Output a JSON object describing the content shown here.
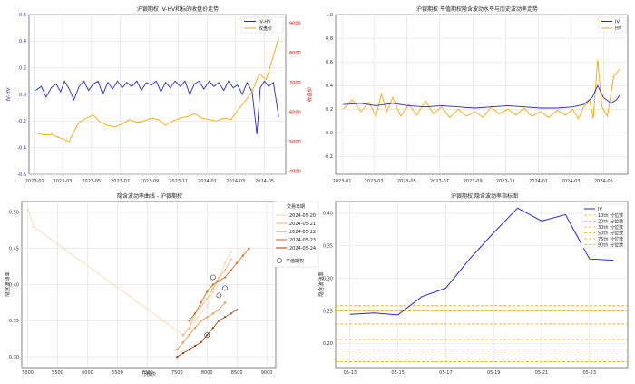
{
  "chart_data": [
    {
      "type": "line",
      "title": "沪银期权 IV-HV和标的收盘价走势",
      "ylabel": "IV-HV",
      "y2label": "收盘价",
      "ylim": [
        -0.6,
        0.6
      ],
      "y2lim": [
        3900,
        9300
      ],
      "yticks": [
        "-0.6",
        "-0.4",
        "-0.2",
        "0.0",
        "0.2",
        "0.4",
        "0.6"
      ],
      "y2ticks": [
        "4000",
        "5000",
        "6000",
        "7000",
        "8000",
        "9000"
      ],
      "xlim": [
        "2022-12-20",
        "2024-06-15"
      ],
      "xticks": [
        "2023-01",
        "2023-03",
        "2023-05",
        "2023-07",
        "2023-09",
        "2023-11",
        "2024-01",
        "2024-03",
        "2024-05"
      ],
      "legend": "top-right",
      "grid": true,
      "series": [
        {
          "name": "IV-HV",
          "axis": "left",
          "color": "#2525e0",
          "points": [
            [
              "2023-01-03",
              0.03
            ],
            [
              "2023-01-15",
              0.06
            ],
            [
              "2023-01-25",
              -0.02
            ],
            [
              "2023-02-05",
              0.05
            ],
            [
              "2023-02-15",
              0.08
            ],
            [
              "2023-02-25",
              0.02
            ],
            [
              "2023-03-05",
              0.1
            ],
            [
              "2023-03-15",
              0.04
            ],
            [
              "2023-03-25",
              -0.04
            ],
            [
              "2023-04-05",
              0.06
            ],
            [
              "2023-04-15",
              0.1
            ],
            [
              "2023-04-25",
              0.03
            ],
            [
              "2023-05-05",
              0.08
            ],
            [
              "2023-05-15",
              0.1
            ],
            [
              "2023-05-25",
              0.0
            ],
            [
              "2023-06-05",
              0.09
            ],
            [
              "2023-06-15",
              0.04
            ],
            [
              "2023-06-25",
              0.1
            ],
            [
              "2023-07-05",
              0.05
            ],
            [
              "2023-07-15",
              0.09
            ],
            [
              "2023-07-25",
              0.06
            ],
            [
              "2023-08-05",
              0.1
            ],
            [
              "2023-08-15",
              0.03
            ],
            [
              "2023-08-25",
              0.09
            ],
            [
              "2023-09-05",
              0.07
            ],
            [
              "2023-09-15",
              0.1
            ],
            [
              "2023-09-25",
              0.02
            ],
            [
              "2023-10-05",
              0.09
            ],
            [
              "2023-10-15",
              0.05
            ],
            [
              "2023-10-25",
              0.1
            ],
            [
              "2023-11-05",
              0.06
            ],
            [
              "2023-11-15",
              0.1
            ],
            [
              "2023-11-25",
              0.0
            ],
            [
              "2023-12-05",
              0.08
            ],
            [
              "2023-12-15",
              0.1
            ],
            [
              "2023-12-25",
              0.04
            ],
            [
              "2024-01-05",
              0.1
            ],
            [
              "2024-01-15",
              0.06
            ],
            [
              "2024-01-25",
              0.09
            ],
            [
              "2024-02-05",
              0.03
            ],
            [
              "2024-02-15",
              0.1
            ],
            [
              "2024-02-25",
              0.05
            ],
            [
              "2024-03-05",
              0.07
            ],
            [
              "2024-03-15",
              0.0
            ],
            [
              "2024-03-25",
              0.09
            ],
            [
              "2024-04-05",
              0.02
            ],
            [
              "2024-04-15",
              -0.3
            ],
            [
              "2024-04-22",
              0.05
            ],
            [
              "2024-05-01",
              0.1
            ],
            [
              "2024-05-10",
              0.06
            ],
            [
              "2024-05-20",
              0.09
            ],
            [
              "2024-05-31",
              -0.17
            ]
          ]
        },
        {
          "name": "收盘价",
          "axis": "right",
          "color": "#ffa500",
          "points": [
            [
              "2023-01-03",
              5300
            ],
            [
              "2023-01-20",
              5230
            ],
            [
              "2023-02-05",
              5250
            ],
            [
              "2023-02-20",
              5150
            ],
            [
              "2023-03-05",
              5080
            ],
            [
              "2023-03-15",
              5000
            ],
            [
              "2023-03-25",
              5350
            ],
            [
              "2023-04-05",
              5650
            ],
            [
              "2023-04-20",
              5800
            ],
            [
              "2023-05-05",
              5900
            ],
            [
              "2023-05-20",
              5650
            ],
            [
              "2023-06-05",
              5550
            ],
            [
              "2023-06-20",
              5500
            ],
            [
              "2023-07-05",
              5600
            ],
            [
              "2023-07-20",
              5750
            ],
            [
              "2023-08-05",
              5650
            ],
            [
              "2023-08-20",
              5700
            ],
            [
              "2023-09-05",
              5800
            ],
            [
              "2023-09-20",
              5750
            ],
            [
              "2023-10-05",
              5550
            ],
            [
              "2023-10-20",
              5700
            ],
            [
              "2023-11-05",
              5800
            ],
            [
              "2023-11-20",
              5850
            ],
            [
              "2023-12-05",
              5950
            ],
            [
              "2023-12-20",
              5800
            ],
            [
              "2024-01-05",
              5750
            ],
            [
              "2024-01-20",
              5700
            ],
            [
              "2024-02-05",
              5800
            ],
            [
              "2024-02-20",
              5750
            ],
            [
              "2024-03-05",
              6050
            ],
            [
              "2024-03-20",
              6350
            ],
            [
              "2024-04-05",
              6700
            ],
            [
              "2024-04-20",
              7300
            ],
            [
              "2024-05-05",
              7100
            ],
            [
              "2024-05-20",
              7900
            ],
            [
              "2024-05-31",
              8500
            ]
          ]
        }
      ]
    },
    {
      "type": "line",
      "title": "沪银期权 平值期权隐含波动水平与历史波动率走势",
      "ylim": [
        -0.35,
        1.0
      ],
      "yticks": [
        "-0.2",
        "0.0",
        "0.2",
        "0.4",
        "0.6",
        "0.8",
        "1.0"
      ],
      "xlim": [
        "2022-12-20",
        "2024-06-15"
      ],
      "xticks": [
        "2023-01",
        "2023-03",
        "2023-05",
        "2023-07",
        "2023-09",
        "2023-11",
        "2024-01",
        "2024-03",
        "2024-05"
      ],
      "legend": "top-right",
      "grid": true,
      "series": [
        {
          "name": "IV",
          "color": "#2525e0",
          "points": [
            [
              "2023-01-03",
              0.24
            ],
            [
              "2023-02-05",
              0.25
            ],
            [
              "2023-03-05",
              0.23
            ],
            [
              "2023-04-05",
              0.25
            ],
            [
              "2023-05-05",
              0.23
            ],
            [
              "2023-06-05",
              0.22
            ],
            [
              "2023-07-05",
              0.23
            ],
            [
              "2023-08-05",
              0.22
            ],
            [
              "2023-09-05",
              0.21
            ],
            [
              "2023-10-05",
              0.22
            ],
            [
              "2023-11-05",
              0.23
            ],
            [
              "2023-12-05",
              0.22
            ],
            [
              "2024-01-05",
              0.21
            ],
            [
              "2024-02-05",
              0.21
            ],
            [
              "2024-03-05",
              0.22
            ],
            [
              "2024-03-25",
              0.24
            ],
            [
              "2024-04-10",
              0.3
            ],
            [
              "2024-04-20",
              0.4
            ],
            [
              "2024-05-01",
              0.3
            ],
            [
              "2024-05-15",
              0.25
            ],
            [
              "2024-05-25",
              0.28
            ],
            [
              "2024-05-31",
              0.32
            ]
          ]
        },
        {
          "name": "HV",
          "color": "#ffa500",
          "points": [
            [
              "2023-01-03",
              0.2
            ],
            [
              "2023-01-20",
              0.28
            ],
            [
              "2023-02-05",
              0.18
            ],
            [
              "2023-02-20",
              0.26
            ],
            [
              "2023-03-05",
              0.14
            ],
            [
              "2023-03-15",
              0.33
            ],
            [
              "2023-03-25",
              0.18
            ],
            [
              "2023-04-05",
              0.3
            ],
            [
              "2023-04-20",
              0.14
            ],
            [
              "2023-05-05",
              0.24
            ],
            [
              "2023-05-20",
              0.15
            ],
            [
              "2023-06-05",
              0.27
            ],
            [
              "2023-06-20",
              0.16
            ],
            [
              "2023-07-05",
              0.22
            ],
            [
              "2023-07-20",
              0.13
            ],
            [
              "2023-08-05",
              0.2
            ],
            [
              "2023-08-20",
              0.14
            ],
            [
              "2023-09-05",
              0.18
            ],
            [
              "2023-09-20",
              0.13
            ],
            [
              "2023-10-05",
              0.22
            ],
            [
              "2023-10-20",
              0.16
            ],
            [
              "2023-11-05",
              0.2
            ],
            [
              "2023-11-20",
              0.15
            ],
            [
              "2023-12-05",
              0.21
            ],
            [
              "2023-12-20",
              0.14
            ],
            [
              "2024-01-05",
              0.18
            ],
            [
              "2024-01-20",
              0.13
            ],
            [
              "2024-02-05",
              0.19
            ],
            [
              "2024-02-20",
              0.15
            ],
            [
              "2024-03-05",
              0.2
            ],
            [
              "2024-03-15",
              0.12
            ],
            [
              "2024-03-25",
              0.22
            ],
            [
              "2024-04-05",
              0.28
            ],
            [
              "2024-04-12",
              0.12
            ],
            [
              "2024-04-20",
              0.62
            ],
            [
              "2024-04-28",
              0.22
            ],
            [
              "2024-05-08",
              0.14
            ],
            [
              "2024-05-20",
              0.48
            ],
            [
              "2024-05-31",
              0.54
            ]
          ]
        }
      ]
    },
    {
      "type": "scatter",
      "title": "隐含波动率曲线 - 沪银期权",
      "xlabel": "行权价",
      "ylabel": "隐含波动率",
      "xlim": [
        4900,
        9150
      ],
      "ylim": [
        0.285,
        0.515
      ],
      "xticks": [
        "5000",
        "5500",
        "6000",
        "6500",
        "7000",
        "7500",
        "8000",
        "8500",
        "9000"
      ],
      "yticks": [
        "0.30",
        "0.35",
        "0.40",
        "0.45",
        "0.50"
      ],
      "legend_title": "交易日期",
      "legend": "top-right",
      "atm_label": "平值期权",
      "grid": true,
      "series": [
        {
          "name": "2024-05-20",
          "color": "#fdd4a8",
          "points": [
            [
              5000,
              0.505
            ],
            [
              5100,
              0.48
            ],
            [
              7600,
              0.33
            ],
            [
              7800,
              0.35
            ],
            [
              8000,
              0.37
            ],
            [
              8100,
              0.39
            ],
            [
              8200,
              0.41
            ],
            [
              8300,
              0.43
            ],
            [
              8400,
              0.445
            ]
          ]
        },
        {
          "name": "2024-05-21",
          "color": "#fdb26b",
          "points": [
            [
              7600,
              0.33
            ],
            [
              7700,
              0.34
            ],
            [
              7800,
              0.36
            ],
            [
              7900,
              0.37
            ],
            [
              8000,
              0.38
            ],
            [
              8100,
              0.395
            ],
            [
              8200,
              0.41
            ],
            [
              8300,
              0.42
            ],
            [
              8400,
              0.435
            ]
          ]
        },
        {
          "name": "2024-05-22",
          "color": "#f58a33",
          "points": [
            [
              7500,
              0.31
            ],
            [
              7600,
              0.32
            ],
            [
              7700,
              0.33
            ],
            [
              7800,
              0.34
            ],
            [
              7900,
              0.35
            ],
            [
              8000,
              0.355
            ],
            [
              8100,
              0.36
            ],
            [
              8200,
              0.365
            ],
            [
              8300,
              0.375
            ]
          ]
        },
        {
          "name": "2024-05-23",
          "color": "#d95f0e",
          "points": [
            [
              7700,
              0.35
            ],
            [
              7800,
              0.36
            ],
            [
              7900,
              0.375
            ],
            [
              8000,
              0.39
            ],
            [
              8100,
              0.4
            ],
            [
              8200,
              0.405
            ],
            [
              8300,
              0.41
            ],
            [
              8400,
              0.42
            ],
            [
              8500,
              0.43
            ],
            [
              8600,
              0.44
            ],
            [
              8700,
              0.45
            ]
          ]
        },
        {
          "name": "2024-05-24",
          "color": "#9c3a05",
          "points": [
            [
              7500,
              0.3
            ],
            [
              7600,
              0.305
            ],
            [
              7700,
              0.31
            ],
            [
              7800,
              0.315
            ],
            [
              7900,
              0.32
            ],
            [
              8000,
              0.33
            ],
            [
              8100,
              0.34
            ],
            [
              8200,
              0.35
            ],
            [
              8300,
              0.355
            ],
            [
              8400,
              0.36
            ],
            [
              8500,
              0.365
            ]
          ]
        }
      ],
      "atm_points": [
        [
          8000,
          0.33
        ],
        [
          8200,
          0.385
        ],
        [
          8300,
          0.395
        ],
        [
          8100,
          0.41
        ]
      ]
    },
    {
      "type": "line",
      "title": "沪银期权 隐含波动率指标图",
      "ylabel": "隐含波动率",
      "ylim": [
        0.163,
        0.418
      ],
      "yticks": [
        "0.20",
        "0.25",
        "0.30",
        "0.35",
        "0.40"
      ],
      "xticks": [
        "05-13",
        "05-15",
        "05-17",
        "05-19",
        "05-21",
        "05-23"
      ],
      "legend": "top-right",
      "grid": true,
      "series": [
        {
          "name": "IV",
          "color": "#2525e0",
          "x": [
            "05-13",
            "05-14",
            "05-15",
            "05-16",
            "05-17",
            "05-18",
            "05-19",
            "05-20",
            "05-21",
            "05-22",
            "05-23",
            "05-24"
          ],
          "values": [
            0.245,
            0.247,
            0.244,
            0.272,
            0.285,
            0.33,
            0.37,
            0.408,
            0.388,
            0.398,
            0.33,
            0.328
          ]
        }
      ],
      "percentiles": [
        {
          "name": "10th 分位数",
          "value": 0.172
        },
        {
          "name": "20th 分位数",
          "value": 0.19
        },
        {
          "name": "30th 分位数",
          "value": 0.206
        },
        {
          "name": "50th 分位数",
          "value": 0.23
        },
        {
          "name": "75th 分位数",
          "value": 0.25
        },
        {
          "name": "90th 分位数",
          "value": 0.258
        }
      ]
    }
  ],
  "colors": {
    "iv": "#2525e0",
    "hv": "#ffa500",
    "price": "#ffa500",
    "right_axis": "#e00000",
    "percentile": "#ffa500"
  }
}
